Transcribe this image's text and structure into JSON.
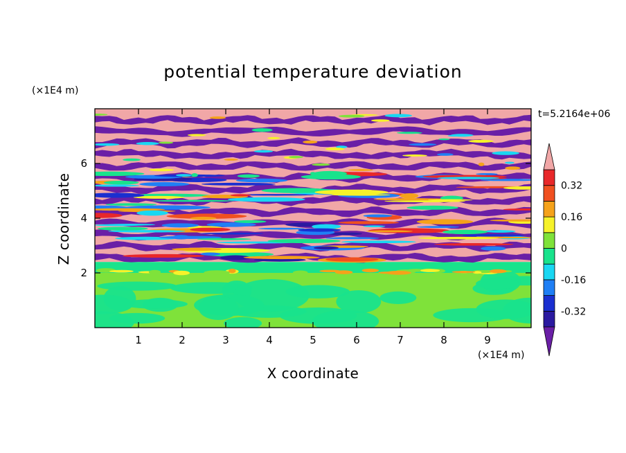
{
  "chart_data": {
    "type": "heatmap",
    "title": "potential temperature deviation",
    "xlabel": "X coordinate",
    "ylabel": "Z coordinate",
    "x_unit": "(×1E4 m)",
    "y_unit": "(×1E4 m)",
    "time_label": "t=5.2164e+06",
    "xlim": [
      0,
      10
    ],
    "ylim": [
      0,
      8
    ],
    "x_ticks": [
      "1",
      "2",
      "3",
      "4",
      "5",
      "6",
      "7",
      "8",
      "9"
    ],
    "y_ticks": [
      "2",
      "4",
      "6"
    ],
    "x_tick_values": [
      1,
      2,
      3,
      4,
      5,
      6,
      7,
      8,
      9
    ],
    "y_tick_values": [
      2,
      4,
      6
    ],
    "colorbar": {
      "levels": [
        -0.4,
        -0.32,
        -0.24,
        -0.16,
        -0.08,
        0,
        0.08,
        0.16,
        0.24,
        0.32,
        0.4
      ],
      "tick_labels": [
        "0.32",
        "0.16",
        "0",
        "-0.16",
        "-0.32"
      ],
      "tick_values": [
        0.32,
        0.16,
        0,
        -0.16,
        -0.32
      ],
      "colors": [
        "#6a1fa6",
        "#2b1aa0",
        "#1a2fd0",
        "#1f7ff5",
        "#19d7f2",
        "#19e38c",
        "#7fe23a",
        "#f6f22a",
        "#f5a21a",
        "#f05020",
        "#e8282a",
        "#f1a7a7"
      ],
      "over_color": "#f1a7a7",
      "under_color": "#6a1fa6"
    },
    "regions": [
      {
        "name": "lower layer",
        "z_range": [
          0,
          2.0
        ],
        "values": "between -0.08 and 0.08"
      },
      {
        "name": "transition band",
        "z_range": [
          2.0,
          2.4
        ],
        "values": "about 0"
      },
      {
        "name": "upper layer",
        "z_range": [
          2.4,
          8.0
        ],
        "values": "alternating bands between -0.4 and 0.4"
      }
    ]
  }
}
